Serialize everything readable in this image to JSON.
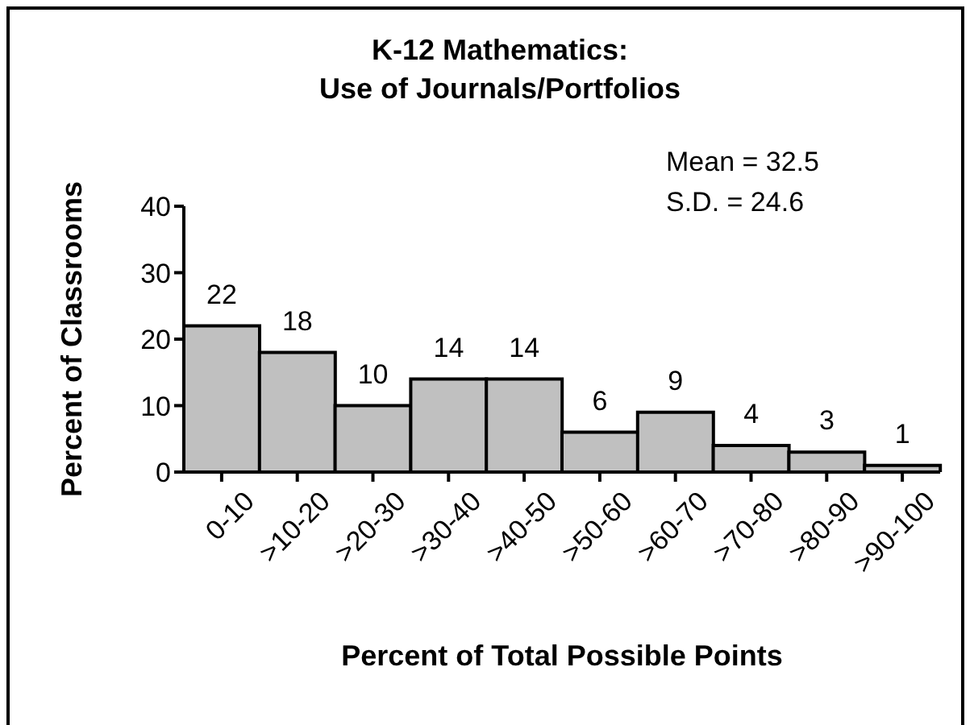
{
  "chart_data": {
    "type": "bar",
    "title": "K-12 Mathematics:\nUse of Journals/Portfolios",
    "xlabel": "Percent of Total Possible Points",
    "ylabel": "Percent of Classrooms",
    "categories": [
      "0-10",
      ">10-20",
      ">20-30",
      ">30-40",
      ">40-50",
      ">50-60",
      ">60-70",
      ">70-80",
      ">80-90",
      ">90-100"
    ],
    "values": [
      22,
      18,
      10,
      14,
      14,
      6,
      9,
      4,
      3,
      1
    ],
    "color": "#c0c0c0",
    "ylim": [
      0,
      40
    ],
    "yticks": [
      0,
      10,
      20,
      30,
      40
    ],
    "grid": false,
    "data_labels": true,
    "annotations": [
      "Mean = 32.5",
      "S.D. = 24.6"
    ]
  }
}
